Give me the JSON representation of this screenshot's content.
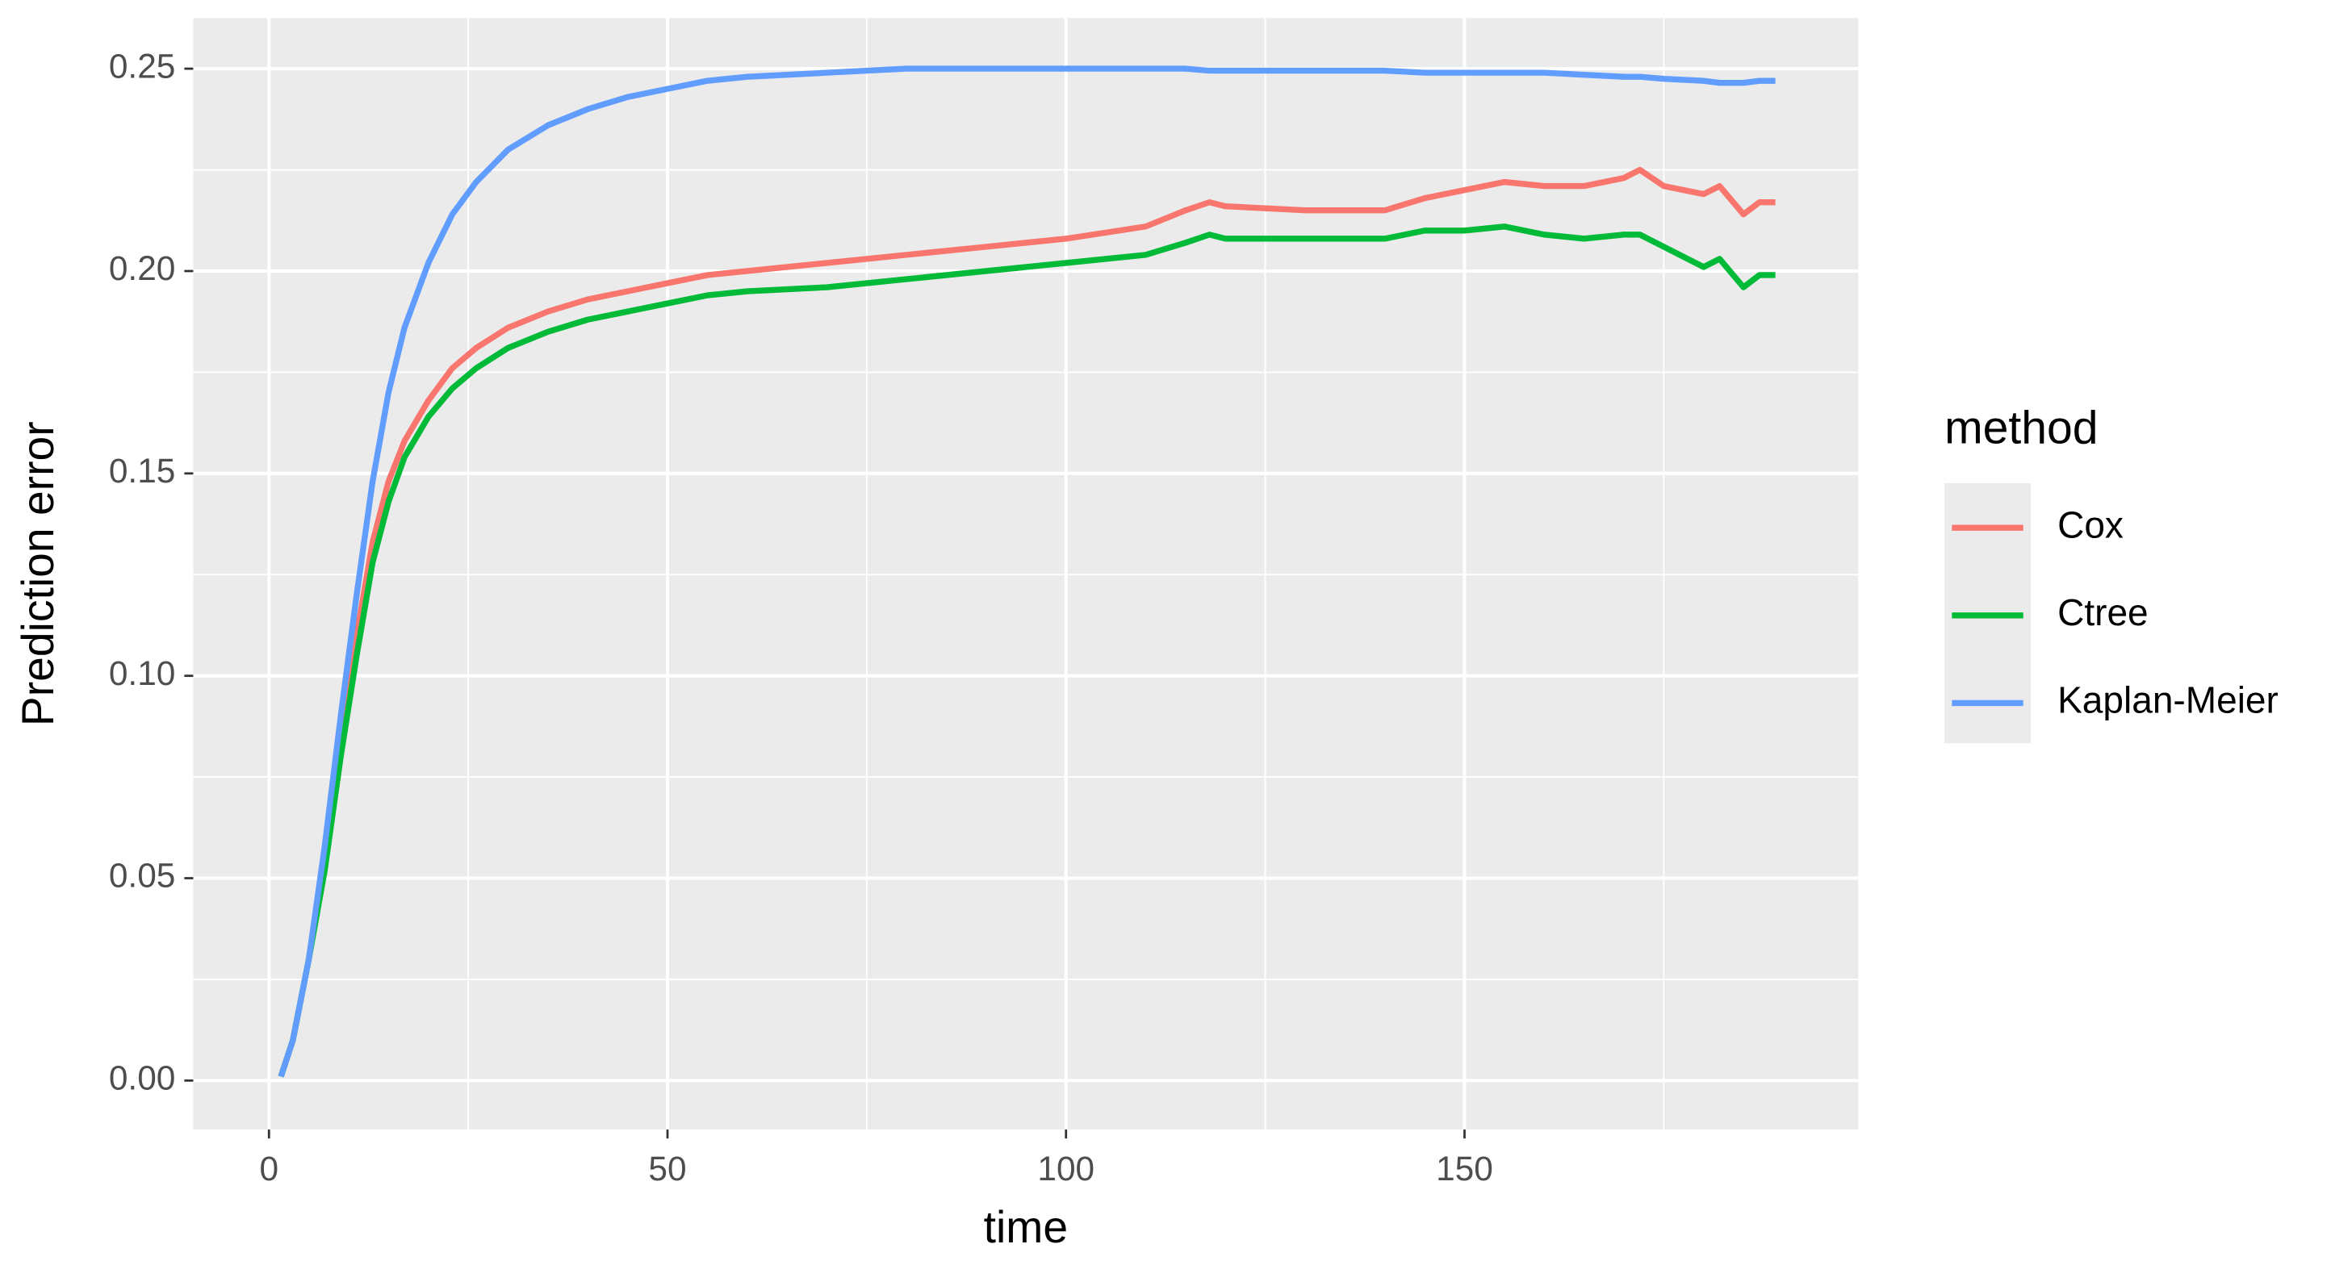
{
  "chart_data": {
    "type": "line",
    "x_label": "time",
    "y_label": "Prediction error",
    "legend_title": "method",
    "legend": "right",
    "grid": true,
    "xlim": [
      -9.5,
      199.4
    ],
    "ylim": [
      -0.0121,
      0.2625
    ],
    "xticks": [
      0,
      50,
      100,
      150
    ],
    "xminor": [
      25,
      75,
      125,
      175
    ],
    "yticks": [
      {
        "value": 0,
        "label": "0.00"
      },
      0.05,
      {
        "value": 0.1,
        "label": "0.10"
      },
      0.15,
      {
        "value": 0.2,
        "label": "0.20"
      },
      0.25
    ],
    "yminor": [
      0.025,
      0.075,
      0.125,
      0.175,
      0.225
    ],
    "x": [
      1.5,
      3,
      5,
      7,
      9,
      11,
      13,
      15,
      17,
      20,
      23,
      26,
      30,
      35,
      40,
      45,
      50,
      55,
      60,
      70,
      80,
      90,
      100,
      110,
      115,
      118,
      120,
      130,
      140,
      145,
      150,
      155,
      160,
      165,
      170,
      172,
      175,
      180,
      182,
      185,
      187,
      189
    ],
    "series": [
      {
        "name": "Cox",
        "color": "#f8766d",
        "values": [
          0.001,
          0.01,
          0.03,
          0.055,
          0.085,
          0.11,
          0.133,
          0.148,
          0.158,
          0.168,
          0.176,
          0.181,
          0.186,
          0.19,
          0.193,
          0.195,
          0.197,
          0.199,
          0.2,
          0.202,
          0.204,
          0.206,
          0.208,
          0.211,
          0.215,
          0.217,
          0.216,
          0.215,
          0.215,
          0.218,
          0.22,
          0.222,
          0.221,
          0.221,
          0.223,
          0.225,
          0.221,
          0.219,
          0.221,
          0.214,
          0.217,
          0.217
        ]
      },
      {
        "name": "Ctree",
        "color": "#00ba38",
        "values": [
          0.001,
          0.01,
          0.03,
          0.052,
          0.08,
          0.105,
          0.128,
          0.143,
          0.154,
          0.164,
          0.171,
          0.176,
          0.181,
          0.185,
          0.188,
          0.19,
          0.192,
          0.194,
          0.195,
          0.196,
          0.198,
          0.2,
          0.202,
          0.204,
          0.207,
          0.209,
          0.208,
          0.208,
          0.208,
          0.21,
          0.21,
          0.211,
          0.209,
          0.208,
          0.209,
          0.209,
          0.206,
          0.201,
          0.203,
          0.196,
          0.199,
          0.199
        ]
      },
      {
        "name": "Kaplan-Meier",
        "color": "#619cff",
        "values": [
          0.001,
          0.01,
          0.03,
          0.058,
          0.09,
          0.12,
          0.148,
          0.17,
          0.186,
          0.202,
          0.214,
          0.222,
          0.23,
          0.236,
          0.24,
          0.243,
          0.245,
          0.247,
          0.248,
          0.249,
          0.25,
          0.25,
          0.25,
          0.25,
          0.25,
          0.2495,
          0.2495,
          0.2495,
          0.2495,
          0.249,
          0.249,
          0.249,
          0.249,
          0.2485,
          0.248,
          0.248,
          0.2475,
          0.247,
          0.2465,
          0.2465,
          0.247,
          0.247
        ]
      }
    ]
  }
}
